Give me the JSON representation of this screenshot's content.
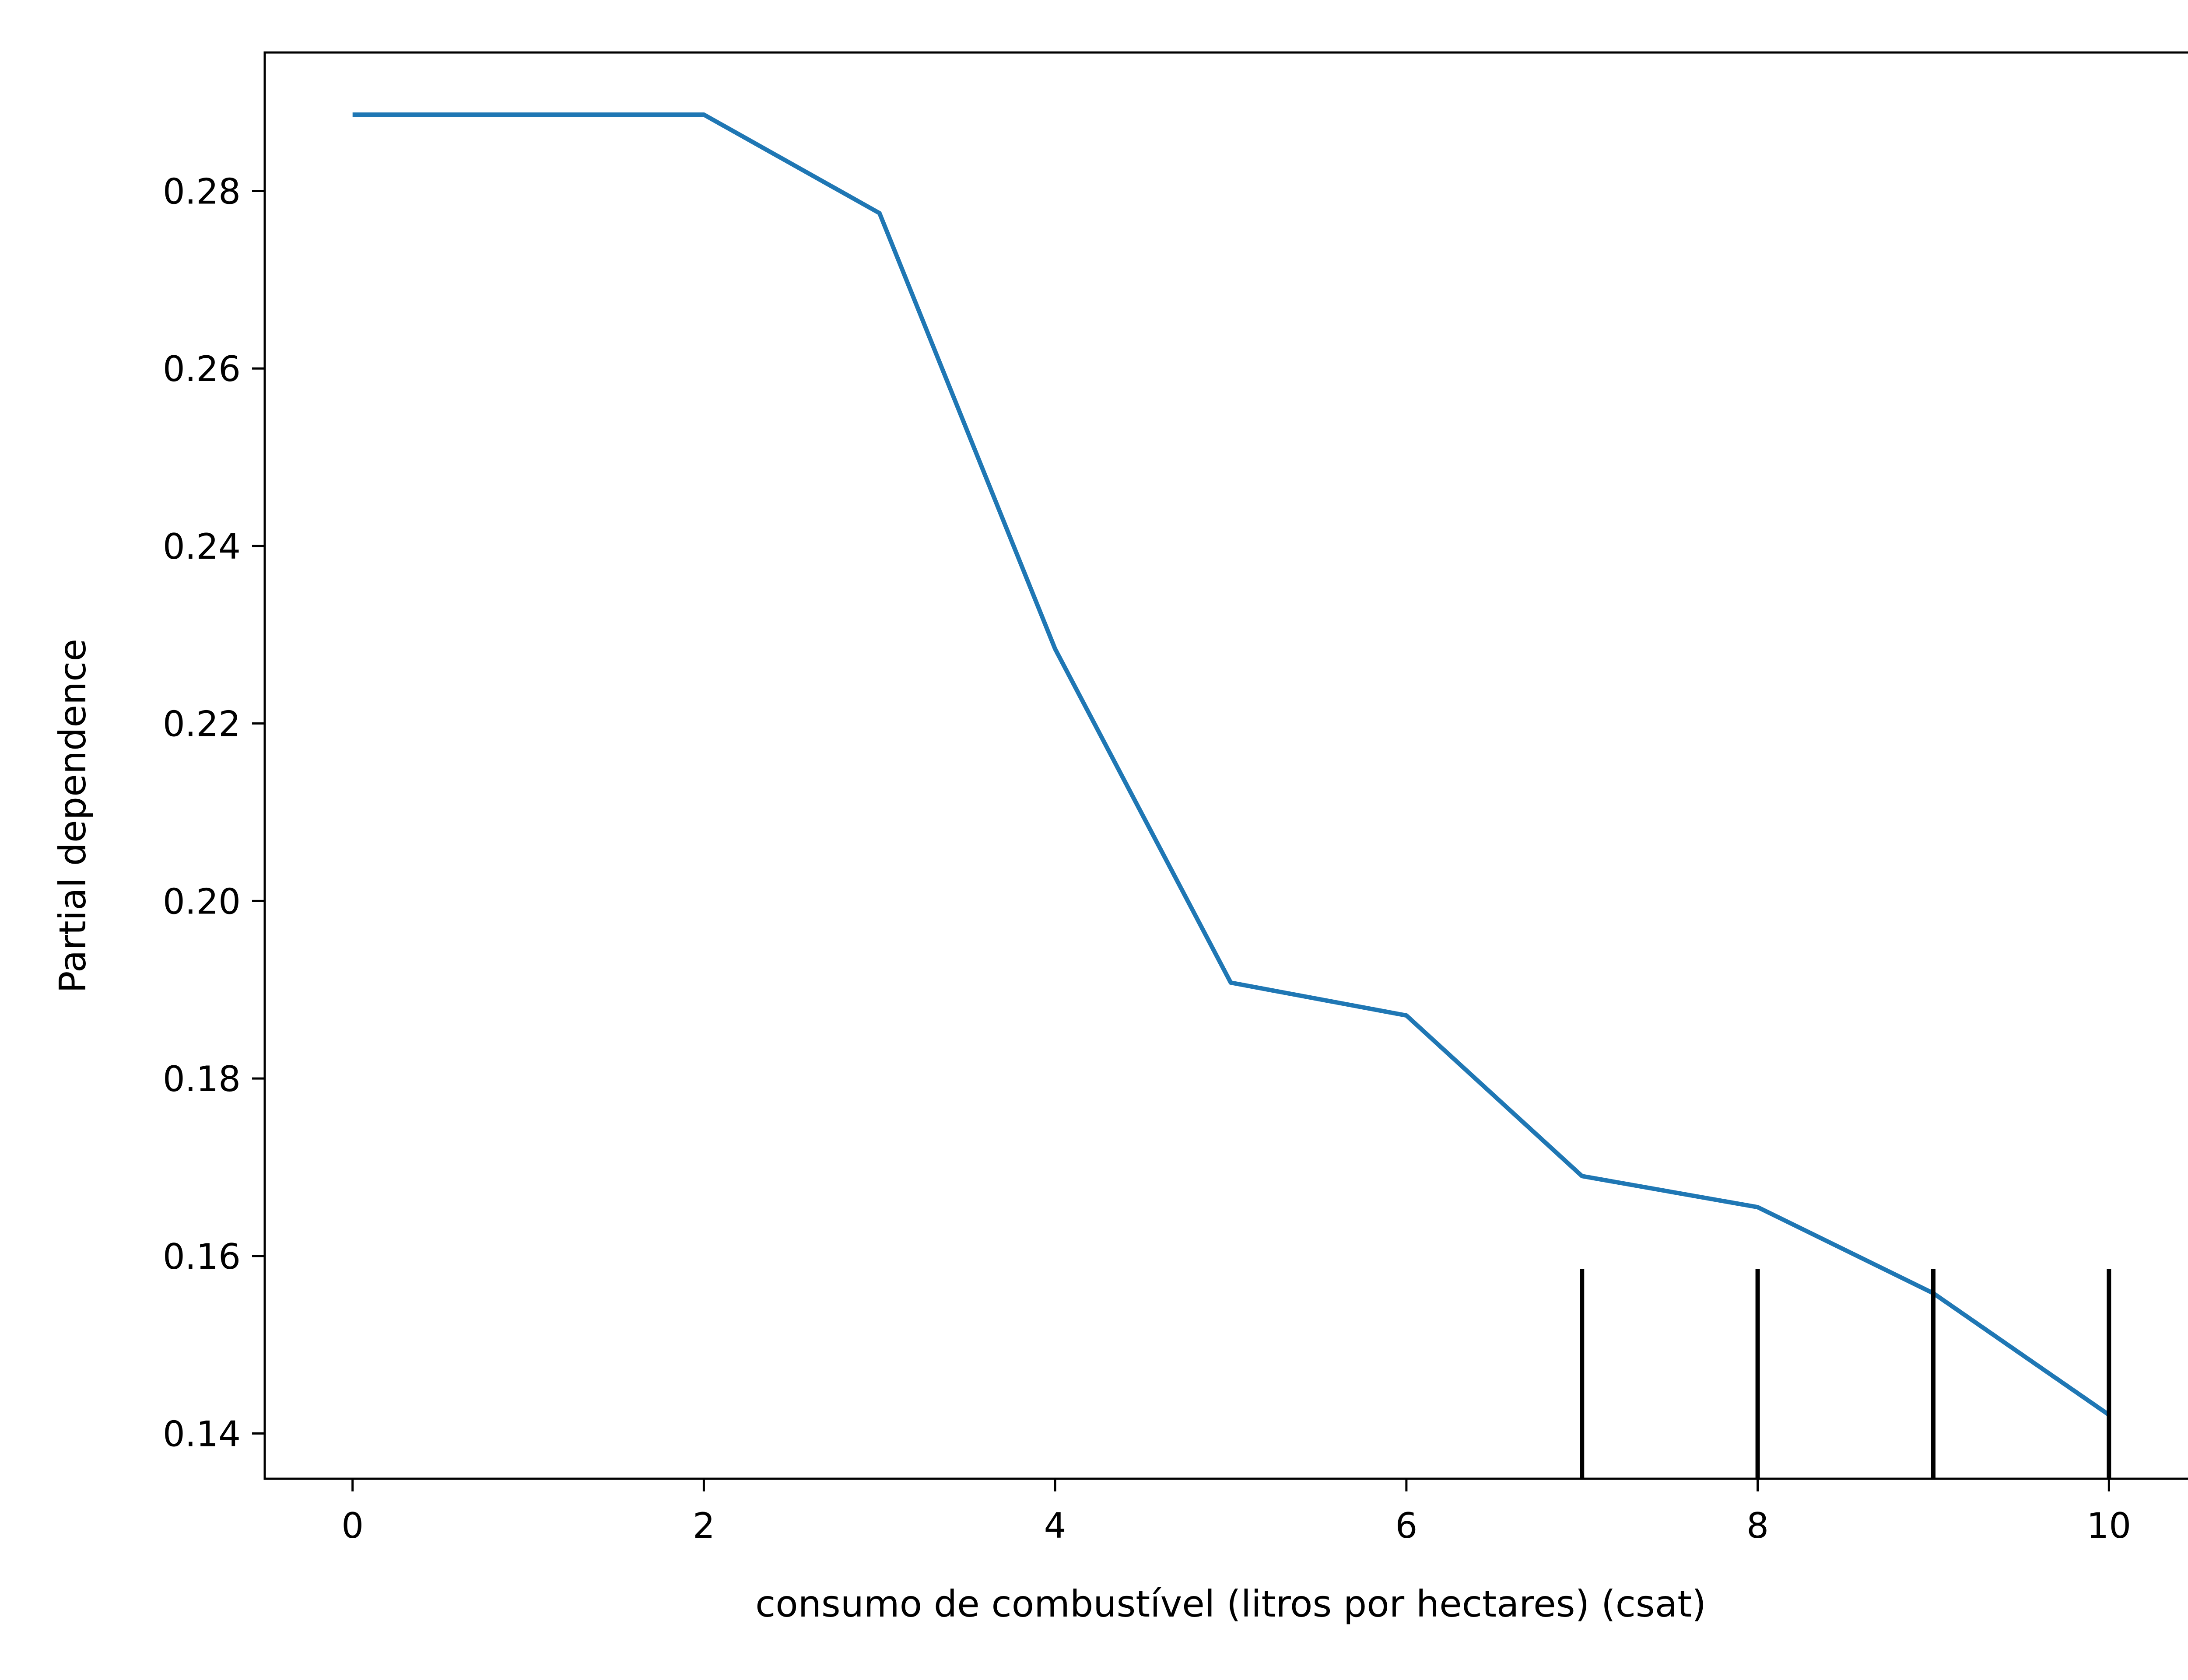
{
  "chart_data": {
    "type": "line",
    "title": "",
    "xlabel": "consumo de combustível (litros por hectares) (csat)",
    "ylabel": "Partial dependence",
    "xlim": [
      -0.5,
      10.5
    ],
    "ylim": [
      0.1349,
      0.2956
    ],
    "x_ticks": [
      0,
      2,
      4,
      6,
      8,
      10
    ],
    "x_tick_labels": [
      "0",
      "2",
      "4",
      "6",
      "8",
      "10"
    ],
    "y_ticks": [
      0.14,
      0.16,
      0.18,
      0.2,
      0.22,
      0.24,
      0.26,
      0.28
    ],
    "y_tick_labels": [
      "0.14",
      "0.16",
      "0.18",
      "0.20",
      "0.22",
      "0.24",
      "0.26",
      "0.28"
    ],
    "grid": false,
    "series": [
      {
        "color": "#1f77b4",
        "x": [
          0,
          2,
          3,
          4,
          5,
          6,
          7,
          8,
          9,
          10
        ],
        "y": [
          0.2886,
          0.2886,
          0.2775,
          0.2284,
          0.1908,
          0.1871,
          0.169,
          0.1655,
          0.1558,
          0.1421
        ]
      }
    ],
    "rug_x": [
      7,
      8,
      9,
      10
    ],
    "rug_color": "#000000"
  }
}
